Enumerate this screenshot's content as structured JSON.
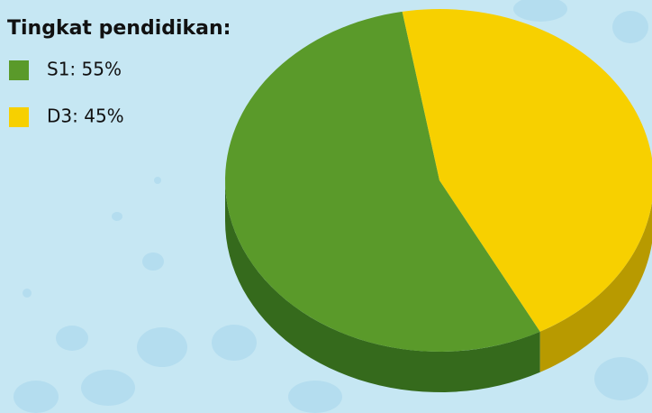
{
  "chart_data": {
    "type": "pie",
    "title": "Tingkat pendidikan:",
    "categories": [
      "S1: 55%",
      "D3: 45%"
    ],
    "values": [
      55,
      45
    ],
    "colors": [
      "#5a9a2a",
      "#f7d000"
    ],
    "side_colors": [
      "#356a1c",
      "#b89a00"
    ]
  }
}
